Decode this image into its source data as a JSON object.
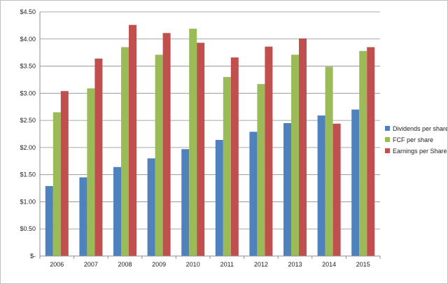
{
  "chart_data": {
    "type": "bar",
    "title": "",
    "xlabel": "",
    "ylabel": "",
    "categories": [
      "2006",
      "2007",
      "2008",
      "2009",
      "2010",
      "2011",
      "2012",
      "2013",
      "2014",
      "2015"
    ],
    "series": [
      {
        "name": "Dividends per share",
        "color": "#4f81bd",
        "values": [
          1.29,
          1.45,
          1.64,
          1.8,
          1.97,
          2.14,
          2.29,
          2.45,
          2.59,
          2.7
        ]
      },
      {
        "name": "FCF per share",
        "color": "#9bbb59",
        "values": [
          2.65,
          3.09,
          3.85,
          3.71,
          4.19,
          3.3,
          3.17,
          3.71,
          3.49,
          3.78
        ]
      },
      {
        "name": "Earnings per Share",
        "color": "#c0504d",
        "values": [
          3.04,
          3.64,
          4.26,
          4.11,
          3.93,
          3.66,
          3.86,
          4.01,
          2.44,
          3.85
        ]
      }
    ],
    "ylim": [
      0,
      4.5
    ],
    "y_ticks": [
      {
        "value": 0,
        "label": "$-"
      },
      {
        "value": 0.5,
        "label": "$0.50"
      },
      {
        "value": 1.0,
        "label": "$1.00"
      },
      {
        "value": 1.5,
        "label": "$1.50"
      },
      {
        "value": 2.0,
        "label": "$2.00"
      },
      {
        "value": 2.5,
        "label": "$2.50"
      },
      {
        "value": 3.0,
        "label": "$3.00"
      },
      {
        "value": 3.5,
        "label": "$3.50"
      },
      {
        "value": 4.0,
        "label": "$4.00"
      },
      {
        "value": 4.5,
        "label": "$4.50"
      }
    ],
    "grid": true,
    "legend_position": "right"
  }
}
